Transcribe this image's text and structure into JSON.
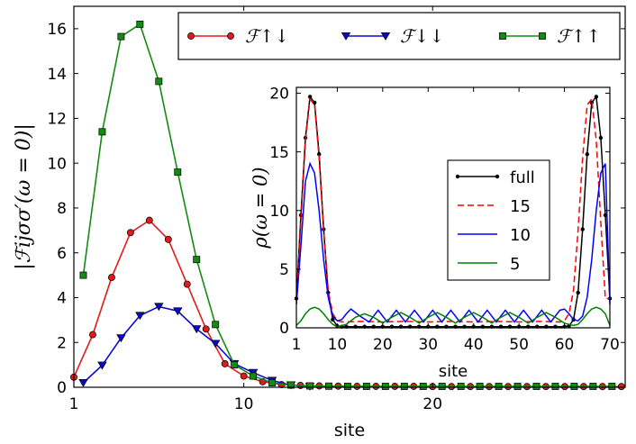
{
  "chart_data": [
    {
      "type": "line",
      "xlabel": "site",
      "ylabel": "|ℱijσσ′(ω = 0)|",
      "xlim": [
        1,
        30.2
      ],
      "ylim": [
        0,
        17
      ],
      "xticks": [
        1,
        10,
        20
      ],
      "yticks": [
        0,
        2,
        4,
        6,
        8,
        10,
        12,
        14,
        16
      ],
      "grid": false,
      "legend": {
        "placement": "top",
        "columns": 3
      },
      "series": [
        {
          "name": "ℱ↑↓",
          "color": "#e31a1c",
          "marker": "circle",
          "x": [
            1,
            2,
            3,
            4,
            5,
            6,
            7,
            8,
            9,
            10,
            11,
            12,
            13,
            14,
            15,
            16,
            17,
            18,
            19,
            20,
            21,
            22,
            23,
            24,
            25,
            26,
            27,
            28,
            29,
            30
          ],
          "y": [
            0.45,
            2.35,
            4.9,
            6.9,
            7.45,
            6.6,
            4.6,
            2.6,
            1.05,
            0.5,
            0.25,
            0.12,
            0.08,
            0.06,
            0.05,
            0.04,
            0.04,
            0.04,
            0.04,
            0.03,
            0.03,
            0.03,
            0.03,
            0.03,
            0.03,
            0.03,
            0.03,
            0.03,
            0.03,
            0.03
          ]
        },
        {
          "name": "ℱ↓↓",
          "color": "#0a0acd",
          "marker": "triangle-down",
          "x": [
            1.5,
            2.5,
            3.5,
            4.5,
            5.5,
            6.5,
            7.5,
            8.5,
            9.5,
            10.5,
            11.5,
            12.5,
            13.5
          ],
          "y": [
            0.2,
            0.98,
            2.2,
            3.2,
            3.6,
            3.4,
            2.6,
            1.95,
            1.05,
            0.65,
            0.3,
            0.1,
            0.04
          ]
        },
        {
          "name": "ℱ↑↑",
          "color": "#138b13",
          "marker": "square",
          "x": [
            1.5,
            2.5,
            3.5,
            4.5,
            5.5,
            6.5,
            7.5,
            8.5,
            9.5,
            10.5,
            11.5,
            12.5,
            13.5,
            14.5,
            15.5,
            16.5,
            17.5,
            18.5,
            19.5,
            20.5,
            21.5,
            22.5,
            23.5,
            24.5,
            25.5,
            26.5,
            27.5,
            28.5,
            29.5
          ],
          "y": [
            5.0,
            11.4,
            15.65,
            16.2,
            13.65,
            9.6,
            5.7,
            2.8,
            1.0,
            0.5,
            0.2,
            0.1,
            0.06,
            0.05,
            0.04,
            0.04,
            0.04,
            0.04,
            0.04,
            0.04,
            0.04,
            0.04,
            0.04,
            0.04,
            0.04,
            0.04,
            0.04,
            0.04,
            0.04
          ]
        }
      ]
    },
    {
      "type": "line",
      "xlabel": "site",
      "ylabel": "ρ(ω = 0)",
      "xlim": [
        1,
        70
      ],
      "ylim": [
        0,
        20.5
      ],
      "xticks": [
        1,
        10,
        20,
        30,
        40,
        50,
        60,
        70
      ],
      "yticks": [
        0,
        5,
        10,
        15,
        20
      ],
      "grid": false,
      "legend": {
        "placement": "center-right"
      },
      "series": [
        {
          "name": "full",
          "color": "#000000",
          "style": "solid-dots",
          "x": [
            1,
            2,
            3,
            4,
            5,
            6,
            7,
            8,
            9,
            10,
            11,
            12,
            14,
            16,
            18,
            20,
            22,
            24,
            26,
            28,
            30,
            32,
            34,
            36,
            38,
            40,
            42,
            44,
            46,
            48,
            50,
            52,
            54,
            56,
            58,
            60,
            61,
            62,
            63,
            64,
            65,
            66,
            67,
            68,
            69,
            70
          ],
          "y": [
            2.5,
            9.6,
            16.2,
            19.7,
            19.2,
            14.8,
            8.4,
            3.0,
            0.7,
            0.15,
            0.1,
            0.1,
            0.1,
            0.1,
            0.1,
            0.1,
            0.1,
            0.1,
            0.1,
            0.1,
            0.1,
            0.1,
            0.1,
            0.1,
            0.1,
            0.1,
            0.1,
            0.1,
            0.1,
            0.1,
            0.1,
            0.1,
            0.1,
            0.1,
            0.1,
            0.1,
            0.15,
            0.7,
            3.0,
            8.4,
            14.8,
            19.2,
            19.7,
            16.2,
            9.6,
            2.5
          ]
        },
        {
          "name": "15",
          "color": "#ff0000",
          "style": "dashed",
          "x": [
            1,
            2,
            3,
            4,
            5,
            6,
            7,
            8,
            9,
            10,
            11,
            12,
            15,
            20,
            25,
            30,
            35,
            40,
            45,
            50,
            55,
            59,
            60,
            61,
            62,
            63,
            64,
            65,
            66,
            67,
            68,
            69,
            70
          ],
          "y": [
            2.5,
            9.0,
            16.0,
            19.5,
            19.0,
            14.5,
            8.3,
            3.2,
            1.2,
            0.6,
            0.5,
            0.5,
            0.55,
            0.5,
            0.55,
            0.5,
            0.55,
            0.5,
            0.55,
            0.5,
            0.55,
            0.5,
            0.6,
            1.2,
            3.2,
            8.3,
            14.5,
            19.0,
            19.5,
            16.0,
            9.0,
            2.5,
            2.5
          ]
        },
        {
          "name": "10",
          "color": "#0000ff",
          "style": "solid",
          "x": [
            1,
            2,
            3,
            4,
            5,
            6,
            7,
            8,
            9,
            10,
            11,
            12,
            13,
            15,
            17,
            19,
            21,
            23,
            25,
            27,
            29,
            31,
            33,
            35,
            37,
            39,
            41,
            43,
            45,
            47,
            49,
            51,
            53,
            55,
            57,
            59,
            60,
            61,
            62,
            63,
            64,
            65,
            66,
            67,
            68,
            69,
            70
          ],
          "y": [
            2.0,
            7.0,
            12.5,
            14.0,
            13.2,
            10.0,
            5.8,
            2.6,
            1.0,
            0.6,
            0.7,
            1.2,
            1.6,
            1.0,
            0.5,
            1.5,
            0.5,
            1.5,
            0.5,
            1.5,
            0.5,
            1.5,
            0.5,
            1.5,
            0.5,
            1.5,
            0.5,
            1.5,
            0.5,
            1.5,
            0.5,
            1.5,
            0.5,
            1.5,
            0.5,
            1.5,
            1.6,
            1.2,
            0.7,
            0.6,
            1.0,
            2.6,
            5.8,
            10.0,
            13.2,
            14.0,
            2.0
          ]
        },
        {
          "name": "5",
          "color": "#008000",
          "style": "solid",
          "x": [
            1,
            2,
            3,
            4,
            5,
            6,
            7,
            8,
            9,
            10,
            12,
            14,
            16,
            18,
            20,
            22,
            24,
            26,
            28,
            30,
            32,
            34,
            36,
            38,
            40,
            42,
            44,
            46,
            48,
            50,
            52,
            54,
            56,
            58,
            60,
            62,
            63,
            64,
            65,
            66,
            67,
            68,
            69,
            70
          ],
          "y": [
            0.2,
            0.6,
            1.2,
            1.6,
            1.75,
            1.6,
            1.2,
            0.7,
            0.3,
            0.1,
            0.3,
            0.9,
            1.2,
            0.9,
            0.4,
            0.9,
            1.3,
            0.9,
            0.4,
            0.9,
            1.3,
            0.9,
            0.4,
            0.9,
            1.3,
            0.9,
            0.4,
            0.9,
            1.3,
            0.9,
            0.4,
            0.9,
            1.3,
            0.9,
            0.4,
            0.2,
            0.3,
            0.7,
            1.2,
            1.6,
            1.75,
            1.6,
            1.2,
            0.2
          ]
        }
      ]
    }
  ]
}
